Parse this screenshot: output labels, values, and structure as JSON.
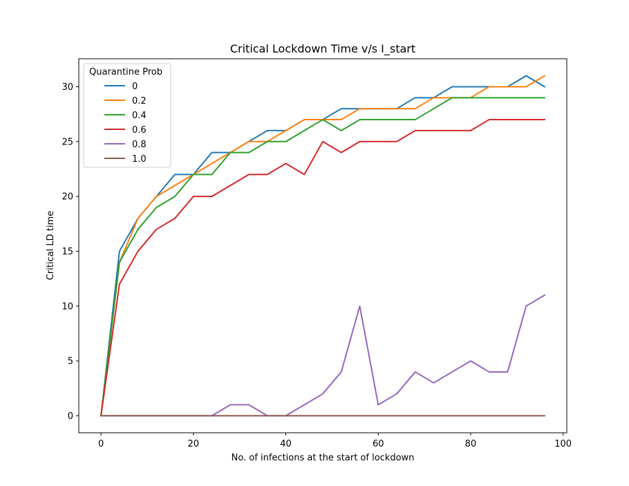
{
  "chart_data": {
    "type": "line",
    "title": "Critical Lockdown Time v/s I_start",
    "xlabel": "No. of infections at the start of lockdown",
    "ylabel": "Critical LD time",
    "xlim": [
      -4.8,
      100.8
    ],
    "ylim": [
      -1.55,
      32.55
    ],
    "xticks": [
      0,
      20,
      40,
      60,
      80,
      100
    ],
    "yticks": [
      0,
      5,
      10,
      15,
      20,
      25,
      30
    ],
    "grid": false,
    "legend": {
      "title": "Quarantine Prob",
      "placement": "upper-left"
    },
    "x": [
      0,
      4,
      8,
      12,
      16,
      20,
      24,
      28,
      32,
      36,
      40,
      44,
      48,
      52,
      56,
      60,
      64,
      68,
      72,
      76,
      80,
      84,
      88,
      92,
      96
    ],
    "series": [
      {
        "name": "0",
        "color": "#1f77b4",
        "values": [
          0,
          15,
          18,
          20,
          22,
          22,
          24,
          24,
          25,
          26,
          26,
          27,
          27,
          28,
          28,
          28,
          28,
          29,
          29,
          30,
          30,
          30,
          30,
          31,
          30
        ]
      },
      {
        "name": "0.2",
        "color": "#ff7f0e",
        "values": [
          0,
          14,
          18,
          20,
          21,
          22,
          23,
          24,
          25,
          25,
          26,
          27,
          27,
          27,
          28,
          28,
          28,
          28,
          29,
          29,
          29,
          30,
          30,
          30,
          31
        ]
      },
      {
        "name": "0.4",
        "color": "#2ca02c",
        "values": [
          0,
          14,
          17,
          19,
          20,
          22,
          22,
          24,
          24,
          25,
          25,
          26,
          27,
          26,
          27,
          27,
          27,
          27,
          28,
          29,
          29,
          29,
          29,
          29,
          29
        ]
      },
      {
        "name": "0.6",
        "color": "#d62728",
        "values": [
          0,
          12,
          15,
          17,
          18,
          20,
          20,
          21,
          22,
          22,
          23,
          22,
          25,
          24,
          25,
          25,
          25,
          26,
          26,
          26,
          26,
          27,
          27,
          27,
          27
        ]
      },
      {
        "name": "0.8",
        "color": "#9467bd",
        "values": [
          0,
          0,
          0,
          0,
          0,
          0,
          0,
          1,
          1,
          0,
          0,
          1,
          2,
          4,
          10,
          1,
          2,
          4,
          3,
          4,
          5,
          4,
          4,
          10,
          11
        ]
      },
      {
        "name": "1.0",
        "color": "#8c564b",
        "values": [
          0,
          0,
          0,
          0,
          0,
          0,
          0,
          0,
          0,
          0,
          0,
          0,
          0,
          0,
          0,
          0,
          0,
          0,
          0,
          0,
          0,
          0,
          0,
          0,
          0
        ]
      }
    ]
  }
}
